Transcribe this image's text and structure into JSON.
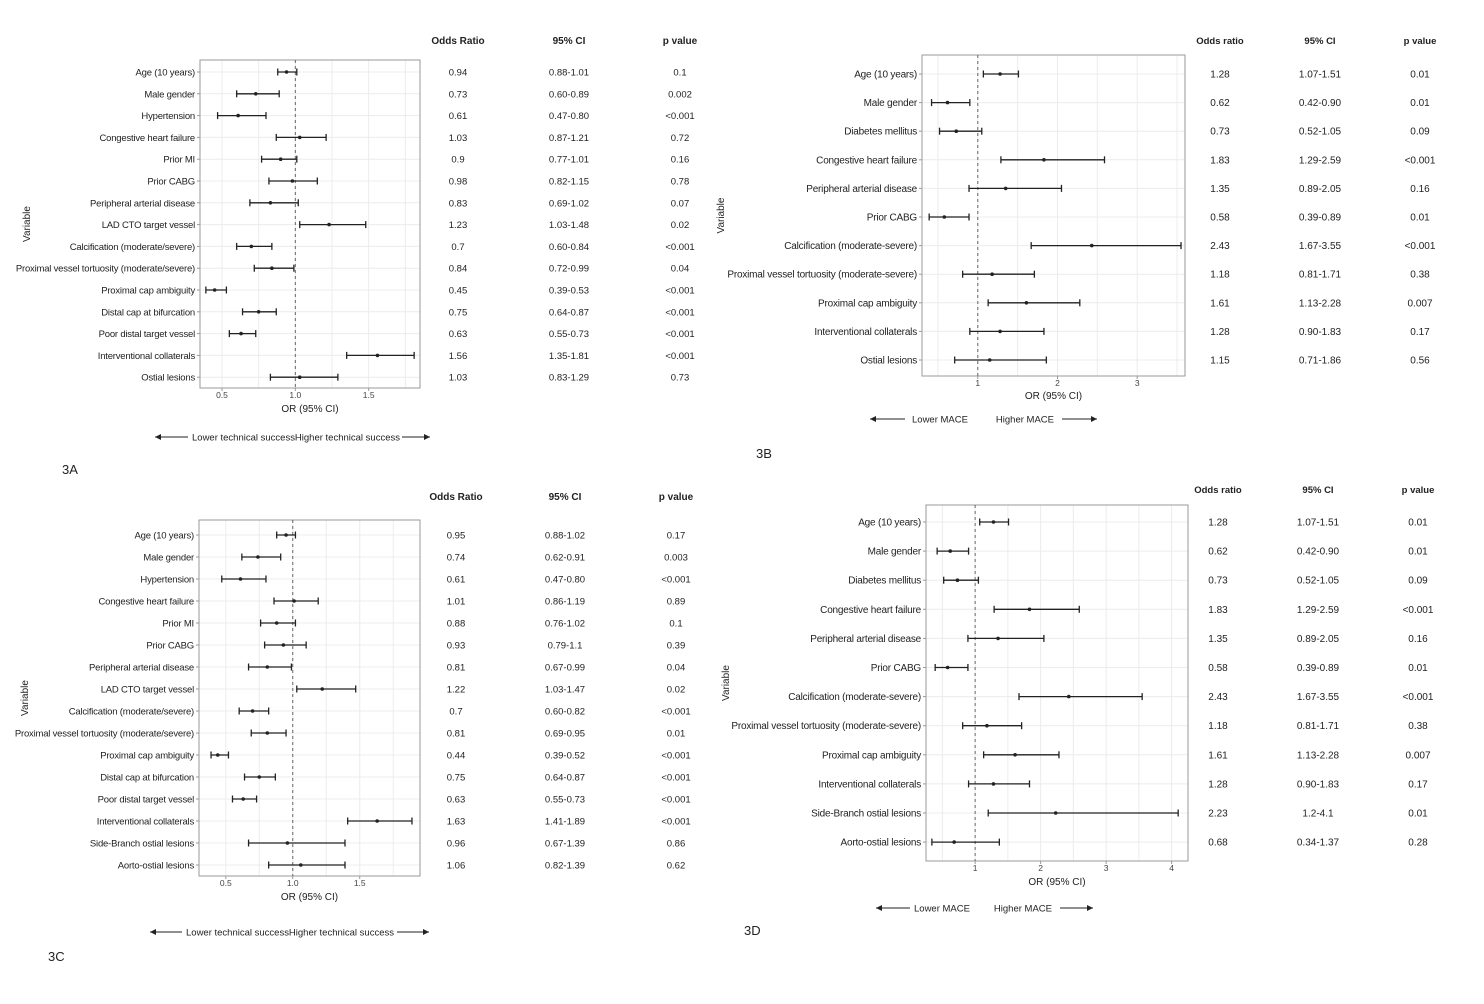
{
  "figure": {
    "colors": {
      "panel_border": "#9a9a9a",
      "grid": "#ececec",
      "marker": "#222222",
      "ref_line": "#666666",
      "text": "#222222"
    }
  },
  "chart_data": [
    {
      "id": "3A",
      "type": "forest",
      "panel_label": "3A",
      "title": "",
      "xlabel": "OR (95% CI)",
      "ylabel": "Variable",
      "xlim": [
        0.35,
        1.85
      ],
      "x_ticks": [
        0.5,
        1.0,
        1.5
      ],
      "x_tick_labels": [
        "0.5",
        "1.0",
        "1.5"
      ],
      "ref_line": 1.0,
      "table_headers": [
        "Odds Ratio",
        "95% CI",
        "p value"
      ],
      "arrow_left": "Lower technical success",
      "arrow_right": "Higher technical success",
      "rows": [
        {
          "label": "Age (10 years)",
          "or": 0.94,
          "lo": 0.88,
          "hi": 1.01,
          "or_text": "0.94",
          "ci_text": "0.88-1.01",
          "p_text": "0.1"
        },
        {
          "label": "Male gender",
          "or": 0.73,
          "lo": 0.6,
          "hi": 0.89,
          "or_text": "0.73",
          "ci_text": "0.60-0.89",
          "p_text": "0.002"
        },
        {
          "label": "Hypertension",
          "or": 0.61,
          "lo": 0.47,
          "hi": 0.8,
          "or_text": "0.61",
          "ci_text": "0.47-0.80",
          "p_text": "<0.001"
        },
        {
          "label": "Congestive heart failure",
          "or": 1.03,
          "lo": 0.87,
          "hi": 1.21,
          "or_text": "1.03",
          "ci_text": "0.87-1.21",
          "p_text": "0.72"
        },
        {
          "label": "Prior MI",
          "or": 0.9,
          "lo": 0.77,
          "hi": 1.01,
          "or_text": "0.9",
          "ci_text": "0.77-1.01",
          "p_text": "0.16"
        },
        {
          "label": "Prior CABG",
          "or": 0.98,
          "lo": 0.82,
          "hi": 1.15,
          "or_text": "0.98",
          "ci_text": "0.82-1.15",
          "p_text": "0.78"
        },
        {
          "label": "Peripheral arterial disease",
          "or": 0.83,
          "lo": 0.69,
          "hi": 1.02,
          "or_text": "0.83",
          "ci_text": "0.69-1.02",
          "p_text": "0.07"
        },
        {
          "label": "LAD CTO target vessel",
          "or": 1.23,
          "lo": 1.03,
          "hi": 1.48,
          "or_text": "1.23",
          "ci_text": "1.03-1.48",
          "p_text": "0.02"
        },
        {
          "label": "Calcification (moderate/severe)",
          "or": 0.7,
          "lo": 0.6,
          "hi": 0.84,
          "or_text": "0.7",
          "ci_text": "0.60-0.84",
          "p_text": "<0.001"
        },
        {
          "label": "Proximal vessel tortuosity (moderate/severe)",
          "or": 0.84,
          "lo": 0.72,
          "hi": 0.99,
          "or_text": "0.84",
          "ci_text": "0.72-0.99",
          "p_text": "0.04"
        },
        {
          "label": "Proximal cap ambiguity",
          "or": 0.45,
          "lo": 0.39,
          "hi": 0.53,
          "or_text": "0.45",
          "ci_text": "0.39-0.53",
          "p_text": "<0.001"
        },
        {
          "label": "Distal cap at bifurcation",
          "or": 0.75,
          "lo": 0.64,
          "hi": 0.87,
          "or_text": "0.75",
          "ci_text": "0.64-0.87",
          "p_text": "<0.001"
        },
        {
          "label": "Poor distal target vessel",
          "or": 0.63,
          "lo": 0.55,
          "hi": 0.73,
          "or_text": "0.63",
          "ci_text": "0.55-0.73",
          "p_text": "<0.001"
        },
        {
          "label": "Interventional collaterals",
          "or": 1.56,
          "lo": 1.35,
          "hi": 1.81,
          "or_text": "1.56",
          "ci_text": "1.35-1.81",
          "p_text": "<0.001"
        },
        {
          "label": "Ostial lesions",
          "or": 1.03,
          "lo": 0.83,
          "hi": 1.29,
          "or_text": "1.03",
          "ci_text": "0.83-1.29",
          "p_text": "0.73"
        }
      ]
    },
    {
      "id": "3B",
      "type": "forest",
      "panel_label": "3B",
      "title": "",
      "xlabel": "OR (95% CI)",
      "ylabel": "Variable",
      "xlim": [
        0.3,
        3.6
      ],
      "x_ticks": [
        1,
        2,
        3
      ],
      "x_tick_labels": [
        "1",
        "2",
        "3"
      ],
      "ref_line": 1.0,
      "table_headers": [
        "Odds ratio",
        "95% CI",
        "p value"
      ],
      "arrow_left": "Lower MACE",
      "arrow_right": "Higher MACE",
      "rows": [
        {
          "label": "Age (10 years)",
          "or": 1.28,
          "lo": 1.07,
          "hi": 1.51,
          "or_text": "1.28",
          "ci_text": "1.07-1.51",
          "p_text": "0.01"
        },
        {
          "label": "Male gender",
          "or": 0.62,
          "lo": 0.42,
          "hi": 0.9,
          "or_text": "0.62",
          "ci_text": "0.42-0.90",
          "p_text": "0.01"
        },
        {
          "label": "Diabetes mellitus",
          "or": 0.73,
          "lo": 0.52,
          "hi": 1.05,
          "or_text": "0.73",
          "ci_text": "0.52-1.05",
          "p_text": "0.09"
        },
        {
          "label": "Congestive heart failure",
          "or": 1.83,
          "lo": 1.29,
          "hi": 2.59,
          "or_text": "1.83",
          "ci_text": "1.29-2.59",
          "p_text": "<0.001"
        },
        {
          "label": "Peripheral arterial disease",
          "or": 1.35,
          "lo": 0.89,
          "hi": 2.05,
          "or_text": "1.35",
          "ci_text": "0.89-2.05",
          "p_text": "0.16"
        },
        {
          "label": "Prior CABG",
          "or": 0.58,
          "lo": 0.39,
          "hi": 0.89,
          "or_text": "0.58",
          "ci_text": "0.39-0.89",
          "p_text": "0.01"
        },
        {
          "label": "Calcification (moderate-severe)",
          "or": 2.43,
          "lo": 1.67,
          "hi": 3.55,
          "or_text": "2.43",
          "ci_text": "1.67-3.55",
          "p_text": "<0.001"
        },
        {
          "label": "Proximal vessel tortuosity (moderate-severe)",
          "or": 1.18,
          "lo": 0.81,
          "hi": 1.71,
          "or_text": "1.18",
          "ci_text": "0.81-1.71",
          "p_text": "0.38"
        },
        {
          "label": "Proximal cap ambiguity",
          "or": 1.61,
          "lo": 1.13,
          "hi": 2.28,
          "or_text": "1.61",
          "ci_text": "1.13-2.28",
          "p_text": "0.007"
        },
        {
          "label": "Interventional collaterals",
          "or": 1.28,
          "lo": 0.9,
          "hi": 1.83,
          "or_text": "1.28",
          "ci_text": "0.90-1.83",
          "p_text": "0.17"
        },
        {
          "label": "Ostial lesions",
          "or": 1.15,
          "lo": 0.71,
          "hi": 1.86,
          "or_text": "1.15",
          "ci_text": "0.71-1.86",
          "p_text": "0.56"
        }
      ]
    },
    {
      "id": "3C",
      "type": "forest",
      "panel_label": "3C",
      "title": "",
      "xlabel": "OR (95% CI)",
      "ylabel": "Variable",
      "xlim": [
        0.3,
        1.95
      ],
      "x_ticks": [
        0.5,
        1.0,
        1.5
      ],
      "x_tick_labels": [
        "0.5",
        "1.0",
        "1.5"
      ],
      "ref_line": 1.0,
      "table_headers": [
        "Odds Ratio",
        "95% CI",
        "p value"
      ],
      "arrow_left": "Lower technical success",
      "arrow_right": "Higher technical success",
      "rows": [
        {
          "label": "Age (10 years)",
          "or": 0.95,
          "lo": 0.88,
          "hi": 1.02,
          "or_text": "0.95",
          "ci_text": "0.88-1.02",
          "p_text": "0.17"
        },
        {
          "label": "Male gender",
          "or": 0.74,
          "lo": 0.62,
          "hi": 0.91,
          "or_text": "0.74",
          "ci_text": "0.62-0.91",
          "p_text": "0.003"
        },
        {
          "label": "Hypertension",
          "or": 0.61,
          "lo": 0.47,
          "hi": 0.8,
          "or_text": "0.61",
          "ci_text": "0.47-0.80",
          "p_text": "<0.001"
        },
        {
          "label": "Congestive heart failure",
          "or": 1.01,
          "lo": 0.86,
          "hi": 1.19,
          "or_text": "1.01",
          "ci_text": "0.86-1.19",
          "p_text": "0.89"
        },
        {
          "label": "Prior MI",
          "or": 0.88,
          "lo": 0.76,
          "hi": 1.02,
          "or_text": "0.88",
          "ci_text": "0.76-1.02",
          "p_text": "0.1"
        },
        {
          "label": "Prior CABG",
          "or": 0.93,
          "lo": 0.79,
          "hi": 1.1,
          "or_text": "0.93",
          "ci_text": "0.79-1.1",
          "p_text": "0.39"
        },
        {
          "label": "Peripheral arterial disease",
          "or": 0.81,
          "lo": 0.67,
          "hi": 0.99,
          "or_text": "0.81",
          "ci_text": "0.67-0.99",
          "p_text": "0.04"
        },
        {
          "label": "LAD CTO target vessel",
          "or": 1.22,
          "lo": 1.03,
          "hi": 1.47,
          "or_text": "1.22",
          "ci_text": "1.03-1.47",
          "p_text": "0.02"
        },
        {
          "label": "Calcification (moderate/severe)",
          "or": 0.7,
          "lo": 0.6,
          "hi": 0.82,
          "or_text": "0.7",
          "ci_text": "0.60-0.82",
          "p_text": "<0.001"
        },
        {
          "label": "Proximal vessel tortuosity (moderate/severe)",
          "or": 0.81,
          "lo": 0.69,
          "hi": 0.95,
          "or_text": "0.81",
          "ci_text": "0.69-0.95",
          "p_text": "0.01"
        },
        {
          "label": "Proximal cap ambiguity",
          "or": 0.44,
          "lo": 0.39,
          "hi": 0.52,
          "or_text": "0.44",
          "ci_text": "0.39-0.52",
          "p_text": "<0.001"
        },
        {
          "label": "Distal cap at bifurcation",
          "or": 0.75,
          "lo": 0.64,
          "hi": 0.87,
          "or_text": "0.75",
          "ci_text": "0.64-0.87",
          "p_text": "<0.001"
        },
        {
          "label": "Poor distal target vessel",
          "or": 0.63,
          "lo": 0.55,
          "hi": 0.73,
          "or_text": "0.63",
          "ci_text": "0.55-0.73",
          "p_text": "<0.001"
        },
        {
          "label": "Interventional collaterals",
          "or": 1.63,
          "lo": 1.41,
          "hi": 1.89,
          "or_text": "1.63",
          "ci_text": "1.41-1.89",
          "p_text": "<0.001"
        },
        {
          "label": "Side-Branch ostial lesions",
          "or": 0.96,
          "lo": 0.67,
          "hi": 1.39,
          "or_text": "0.96",
          "ci_text": "0.67-1.39",
          "p_text": "0.86"
        },
        {
          "label": "Aorto-ostial lesions",
          "or": 1.06,
          "lo": 0.82,
          "hi": 1.39,
          "or_text": "1.06",
          "ci_text": "0.82-1.39",
          "p_text": "0.62"
        }
      ]
    },
    {
      "id": "3D",
      "type": "forest",
      "panel_label": "3D",
      "title": "",
      "xlabel": "OR (95% CI)",
      "ylabel": "Variable",
      "xlim": [
        0.25,
        4.25
      ],
      "x_ticks": [
        1,
        2,
        3,
        4
      ],
      "x_tick_labels": [
        "1",
        "2",
        "3",
        "4"
      ],
      "ref_line": 1.0,
      "table_headers": [
        "Odds ratio",
        "95% CI",
        "p value"
      ],
      "arrow_left": "Lower MACE",
      "arrow_right": "Higher MACE",
      "rows": [
        {
          "label": "Age (10 years)",
          "or": 1.28,
          "lo": 1.07,
          "hi": 1.51,
          "or_text": "1.28",
          "ci_text": "1.07-1.51",
          "p_text": "0.01"
        },
        {
          "label": "Male gender",
          "or": 0.62,
          "lo": 0.42,
          "hi": 0.9,
          "or_text": "0.62",
          "ci_text": "0.42-0.90",
          "p_text": "0.01"
        },
        {
          "label": "Diabetes mellitus",
          "or": 0.73,
          "lo": 0.52,
          "hi": 1.05,
          "or_text": "0.73",
          "ci_text": "0.52-1.05",
          "p_text": "0.09"
        },
        {
          "label": "Congestive heart failure",
          "or": 1.83,
          "lo": 1.29,
          "hi": 2.59,
          "or_text": "1.83",
          "ci_text": "1.29-2.59",
          "p_text": "<0.001"
        },
        {
          "label": "Peripheral arterial disease",
          "or": 1.35,
          "lo": 0.89,
          "hi": 2.05,
          "or_text": "1.35",
          "ci_text": "0.89-2.05",
          "p_text": "0.16"
        },
        {
          "label": "Prior CABG",
          "or": 0.58,
          "lo": 0.39,
          "hi": 0.89,
          "or_text": "0.58",
          "ci_text": "0.39-0.89",
          "p_text": "0.01"
        },
        {
          "label": "Calcification (moderate-severe)",
          "or": 2.43,
          "lo": 1.67,
          "hi": 3.55,
          "or_text": "2.43",
          "ci_text": "1.67-3.55",
          "p_text": "<0.001"
        },
        {
          "label": "Proximal vessel tortuosity (moderate-severe)",
          "or": 1.18,
          "lo": 0.81,
          "hi": 1.71,
          "or_text": "1.18",
          "ci_text": "0.81-1.71",
          "p_text": "0.38"
        },
        {
          "label": "Proximal cap ambiguity",
          "or": 1.61,
          "lo": 1.13,
          "hi": 2.28,
          "or_text": "1.61",
          "ci_text": "1.13-2.28",
          "p_text": "0.007"
        },
        {
          "label": "Interventional collaterals",
          "or": 1.28,
          "lo": 0.9,
          "hi": 1.83,
          "or_text": "1.28",
          "ci_text": "0.90-1.83",
          "p_text": "0.17"
        },
        {
          "label": "Side-Branch ostial lesions",
          "or": 2.23,
          "lo": 1.2,
          "hi": 4.1,
          "or_text": "2.23",
          "ci_text": "1.2-4.1",
          "p_text": "0.01"
        },
        {
          "label": "Aorto-ostial lesions",
          "or": 0.68,
          "lo": 0.34,
          "hi": 1.37,
          "or_text": "0.68",
          "ci_text": "0.34-1.37",
          "p_text": "0.28"
        }
      ]
    }
  ]
}
